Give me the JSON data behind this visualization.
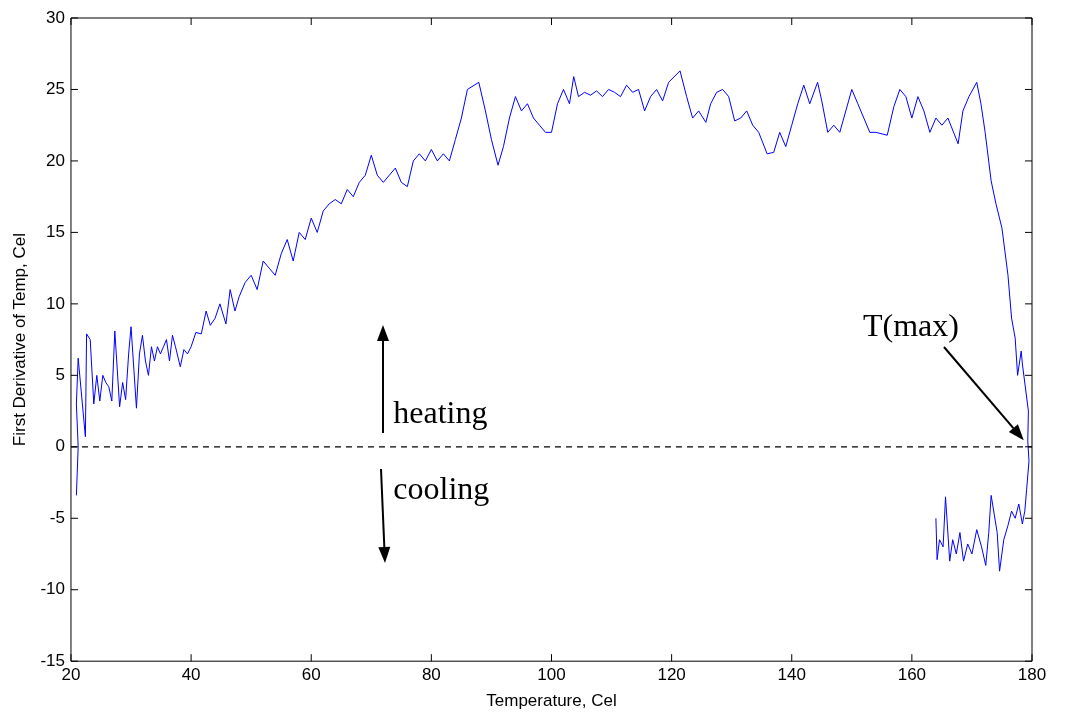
{
  "chart_data": {
    "type": "line",
    "xlabel": "Temperature, Cel",
    "ylabel": "First Derivative of Temp, Cel",
    "xlim": [
      20,
      180
    ],
    "xticks": [
      20,
      40,
      60,
      80,
      100,
      120,
      140,
      160,
      180
    ],
    "ylim": [
      -15,
      30
    ],
    "yticks": [
      -15,
      -10,
      -5,
      0,
      5,
      10,
      15,
      20,
      25,
      30
    ],
    "grid": false,
    "legend": false,
    "marker": "none",
    "line_style": "solid",
    "ref_lines": [
      {
        "axis": "y",
        "value": 0,
        "color": "#000000",
        "line_style": "dashed"
      }
    ],
    "annotations": [
      "heating",
      "cooling",
      "T(max)"
    ],
    "series": [
      {
        "color": "#0000ff",
        "x": [
          20.9,
          21.2,
          20.9,
          21.2,
          22.4,
          22.6,
          23.2,
          23.8,
          24.3,
          24.8,
          25.3,
          25.8,
          26.3,
          26.8,
          27.3,
          28.1,
          28.6,
          29.1,
          29.6,
          30.0,
          30.9,
          31.4,
          31.9,
          32.4,
          32.9,
          33.4,
          33.9,
          34.4,
          34.9,
          35.4,
          35.9,
          36.4,
          36.9,
          37.4,
          38.2,
          38.8,
          39.4,
          40,
          40.8,
          41.7,
          42.5,
          43.2,
          44,
          44.8,
          45.8,
          46.5,
          47.3,
          48,
          49,
          50,
          51,
          52,
          53,
          54,
          55,
          56,
          57,
          58,
          59,
          60,
          61,
          62,
          63,
          64,
          65,
          66,
          67,
          68,
          69,
          70,
          71,
          72,
          73,
          74,
          75,
          76,
          77,
          78,
          79,
          80,
          81,
          82,
          83,
          84,
          85,
          86,
          87.9,
          89,
          90,
          91.1,
          92,
          93,
          94,
          95,
          96,
          97,
          98,
          99,
          100,
          101,
          102,
          103,
          103.7,
          104.5,
          105.5,
          106.5,
          107.5,
          108.5,
          109.5,
          110.5,
          111.5,
          112.5,
          113.5,
          114.5,
          115.5,
          116.5,
          117.5,
          118.5,
          119.5,
          121.4,
          122.5,
          123.5,
          124.5,
          125.7,
          126.5,
          127.5,
          128.5,
          129.5,
          130.5,
          131.5,
          132.5,
          133.5,
          134.5,
          135.9,
          137,
          138,
          139,
          140,
          141,
          142,
          143,
          144.3,
          145,
          146,
          147,
          148,
          149,
          150,
          151,
          152,
          153,
          154,
          155.9,
          157,
          158,
          159,
          160,
          161,
          162,
          163,
          164,
          165,
          166,
          167.7,
          168.5,
          169.5,
          170.8,
          171.5,
          172.2,
          173.2,
          174,
          175,
          176,
          176.6,
          177.2,
          177.6,
          178.2,
          178.4,
          179.4,
          179.3,
          179.5,
          179.1,
          178.8,
          178.4,
          177.8,
          177.2,
          176.6,
          176,
          175.3,
          174.6,
          174.2,
          173.2,
          172.8,
          172.3,
          171.6,
          170.8,
          170,
          169.3,
          168.6,
          168,
          167.4,
          166.8,
          166.3,
          165.6,
          165.2,
          164.6,
          164.2,
          164
        ],
        "values": [
          -3.4,
          0,
          3,
          6.2,
          0.7,
          7.9,
          7.5,
          3,
          5,
          3.2,
          5,
          4.5,
          4.2,
          3.2,
          8.1,
          2.8,
          4.5,
          3.3,
          6.5,
          8.4,
          2.7,
          6.5,
          7.8,
          6,
          5,
          7,
          6,
          7,
          6.5,
          7,
          7.5,
          6,
          7.8,
          7,
          5.6,
          6.8,
          6.5,
          7,
          8,
          7.9,
          9.5,
          8.5,
          9,
          10,
          8.6,
          11,
          9.5,
          10.5,
          11.5,
          12,
          11,
          13,
          12.5,
          12,
          13.5,
          14.5,
          13,
          15,
          14.5,
          16,
          15,
          16.5,
          17,
          17.3,
          17,
          18,
          17.5,
          18.5,
          19,
          20.4,
          19,
          18.5,
          19,
          19.5,
          18.5,
          18.2,
          20,
          20.5,
          20,
          20.8,
          20,
          20.5,
          20,
          21.5,
          23,
          25,
          25.5,
          23.5,
          21.5,
          19.7,
          21,
          23,
          24.5,
          23.5,
          24,
          23,
          22.5,
          22,
          22,
          24,
          25,
          24,
          25.9,
          24.5,
          24.8,
          24.6,
          24.9,
          24.5,
          25,
          24.8,
          24.5,
          25.3,
          24.8,
          25,
          23.5,
          24.5,
          25,
          24.2,
          25.5,
          26.3,
          24.5,
          23,
          23.5,
          22.7,
          24,
          24.8,
          25,
          24.5,
          22.8,
          23,
          23.5,
          22.5,
          22,
          20.5,
          20.6,
          22,
          21,
          22.5,
          24,
          25.3,
          24,
          25.5,
          24.2,
          22,
          22.5,
          22,
          23.5,
          25,
          24,
          23,
          22,
          22,
          21.8,
          23.8,
          25,
          24.5,
          23,
          24.5,
          23.5,
          22,
          23,
          22.5,
          23,
          21.2,
          23.5,
          24.5,
          25.5,
          24,
          22,
          18.6,
          17,
          15.3,
          12,
          9,
          7.6,
          5,
          6.7,
          5.8,
          2.5,
          0.4,
          -1,
          -3,
          -4.5,
          -5.4,
          -4,
          -5,
          -4.5,
          -5.5,
          -6.5,
          -8.7,
          -6,
          -3.4,
          -6,
          -8.3,
          -7,
          -5.8,
          -7.5,
          -6.8,
          -8,
          -6,
          -7.5,
          -6.5,
          -8,
          -3.5,
          -7,
          -6.5,
          -7.9,
          -5
        ]
      }
    ]
  }
}
